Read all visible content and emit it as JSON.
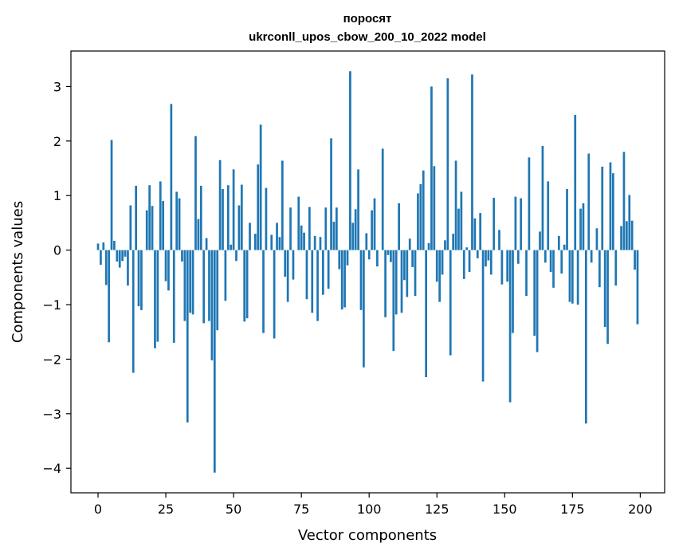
{
  "chart_data": {
    "type": "bar",
    "title_line1": "поросят",
    "title_line2": "ukrconll_upos_cbow_200_10_2022 model",
    "xlabel": "Vector components",
    "ylabel": "Components values",
    "xlim": [
      -10,
      209
    ],
    "ylim": [
      -4.45,
      3.65
    ],
    "xticks": [
      0,
      25,
      50,
      75,
      100,
      125,
      150,
      175,
      200
    ],
    "xtick_labels": [
      "0",
      "25",
      "50",
      "75",
      "100",
      "125",
      "150",
      "175",
      "200"
    ],
    "yticks": [
      3,
      2,
      1,
      0,
      -1,
      -2,
      -3,
      -4
    ],
    "ytick_labels": [
      "3",
      "2",
      "1",
      "0",
      "−1",
      "−2",
      "−3",
      "−4"
    ],
    "grid": false,
    "bar_color": "#1f77b4",
    "values": [
      0.12,
      -0.27,
      0.14,
      -0.64,
      -1.69,
      2.02,
      0.17,
      -0.21,
      -0.32,
      -0.2,
      -0.12,
      -0.65,
      0.82,
      -2.25,
      1.18,
      -1.03,
      -1.1,
      0.0,
      0.73,
      1.19,
      0.81,
      -1.8,
      -1.68,
      1.26,
      0.9,
      -0.57,
      -0.74,
      2.68,
      -1.7,
      1.07,
      0.95,
      -0.21,
      -1.3,
      -3.16,
      -1.15,
      -1.18,
      2.09,
      0.57,
      1.18,
      -1.34,
      0.22,
      -1.3,
      -2.02,
      -4.08,
      -1.47,
      1.65,
      1.12,
      -0.93,
      1.19,
      0.1,
      1.48,
      -0.2,
      0.82,
      1.2,
      -1.31,
      -1.25,
      0.5,
      0.0,
      0.3,
      1.57,
      2.3,
      -1.52,
      1.14,
      0.0,
      0.28,
      -1.62,
      0.5,
      0.24,
      1.64,
      -0.49,
      -0.95,
      0.78,
      -0.54,
      0.0,
      0.98,
      0.45,
      0.32,
      -0.9,
      0.79,
      -1.15,
      0.26,
      -1.3,
      0.24,
      -0.82,
      0.78,
      -0.71,
      2.05,
      0.52,
      0.78,
      -0.35,
      -1.09,
      -1.05,
      -0.28,
      3.28,
      0.5,
      0.75,
      1.48,
      -1.1,
      -2.15,
      0.31,
      -0.17,
      0.73,
      0.95,
      -0.3,
      0.0,
      1.86,
      -1.23,
      -0.09,
      -0.22,
      -1.85,
      -1.18,
      0.86,
      -1.15,
      -0.55,
      -0.86,
      0.21,
      -0.31,
      -0.84,
      1.04,
      1.21,
      1.46,
      -2.33,
      0.13,
      3.0,
      1.54,
      -0.58,
      -0.95,
      -0.45,
      0.18,
      3.15,
      -1.93,
      0.3,
      1.64,
      0.76,
      1.07,
      -0.53,
      0.05,
      -0.4,
      3.22,
      0.58,
      -0.15,
      0.68,
      -2.41,
      -0.3,
      -0.19,
      -0.45,
      0.96,
      0.0,
      0.37,
      -0.63,
      0.0,
      -0.58,
      -2.79,
      -1.52,
      0.98,
      -0.25,
      0.95,
      0.0,
      -0.84,
      1.7,
      0.0,
      -1.57,
      -1.87,
      0.34,
      1.91,
      -0.23,
      1.26,
      -0.4,
      -0.69,
      0.0,
      0.26,
      -0.43,
      0.1,
      1.12,
      -0.95,
      -0.98,
      2.48,
      -1.0,
      0.76,
      0.86,
      -3.18,
      1.77,
      -0.23,
      0.0,
      0.4,
      -0.68,
      1.53,
      -1.41,
      -1.72,
      1.61,
      1.41,
      -0.65,
      0.0,
      0.44,
      1.8,
      0.53,
      1.01,
      0.54,
      -0.36,
      -1.36
    ]
  }
}
